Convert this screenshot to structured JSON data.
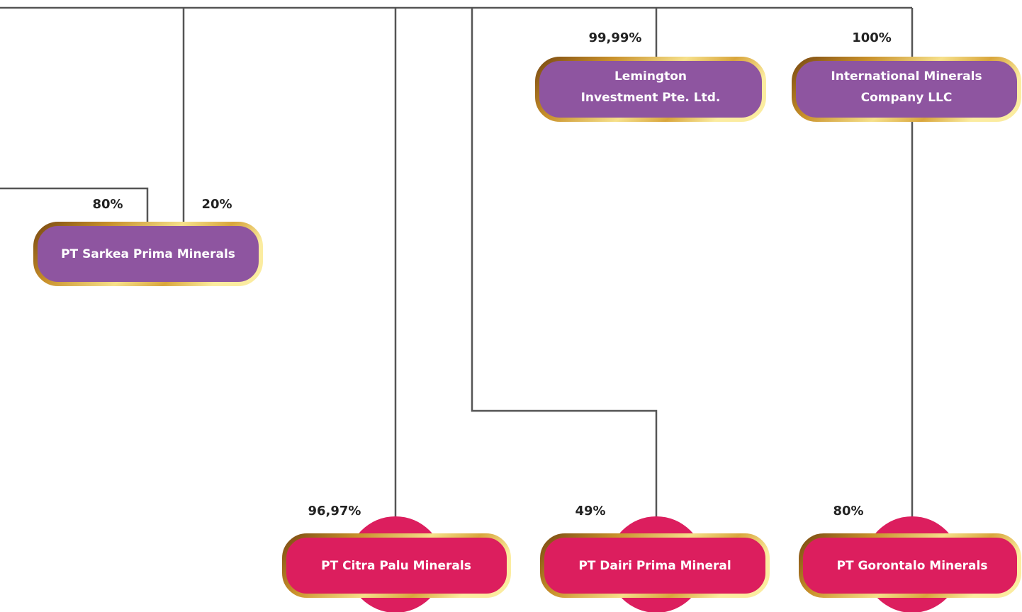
{
  "nodes": [
    {
      "lines": [
        "Lemington",
        "Investment Pte. Ltd."
      ]
    },
    {
      "lines": [
        "International Minerals",
        "Company LLC"
      ]
    },
    {
      "lines": [
        "PT Sarkea Prima Minerals"
      ]
    },
    {
      "lines": [
        "PT Citra Palu Minerals"
      ]
    },
    {
      "lines": [
        "PT Dairi Prima Mineral"
      ]
    },
    {
      "lines": [
        "PT Gorontalo Minerals"
      ]
    }
  ],
  "shares": [
    "99,99%",
    "100%",
    "80%",
    "20%",
    "96,97%",
    "49%",
    "80%"
  ]
}
